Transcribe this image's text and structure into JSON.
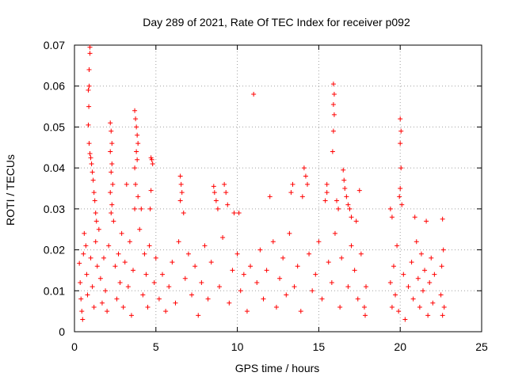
{
  "chart_data": {
    "type": "scatter",
    "title": "Day 289 of 2021, Rate Of TEC Index for receiver p092",
    "xlabel": "GPS time / hours",
    "ylabel": "ROTI / TECUs",
    "xlim": [
      0,
      25
    ],
    "ylim": [
      0,
      0.07
    ],
    "x_ticks": [
      0,
      5,
      10,
      15,
      20,
      25
    ],
    "y_ticks": [
      0,
      0.01,
      0.02,
      0.03,
      0.04,
      0.05,
      0.06,
      0.07
    ],
    "x_tick_labels": [
      "0",
      "5",
      "10",
      "15",
      "20",
      "25"
    ],
    "y_tick_labels": [
      "0",
      "0.01",
      "0.02",
      "0.03",
      "0.04",
      "0.05",
      "0.06",
      "0.07"
    ],
    "grid": true,
    "marker": "+",
    "color": "#ff0000",
    "series": [
      {
        "name": "ROTI",
        "points": [
          [
            0.95,
            0.0695
          ],
          [
            0.95,
            0.068
          ],
          [
            0.9,
            0.064
          ],
          [
            0.9,
            0.06
          ],
          [
            0.85,
            0.059
          ],
          [
            0.88,
            0.055
          ],
          [
            0.85,
            0.0505
          ],
          [
            0.9,
            0.046
          ],
          [
            0.95,
            0.0435
          ],
          [
            1.0,
            0.0425
          ],
          [
            1.05,
            0.041
          ],
          [
            1.1,
            0.039
          ],
          [
            1.15,
            0.037
          ],
          [
            1.2,
            0.034
          ],
          [
            1.25,
            0.032
          ],
          [
            1.3,
            0.029
          ],
          [
            1.35,
            0.027
          ],
          [
            2.2,
            0.051
          ],
          [
            2.25,
            0.049
          ],
          [
            2.3,
            0.046
          ],
          [
            2.2,
            0.044
          ],
          [
            2.3,
            0.041
          ],
          [
            2.25,
            0.039
          ],
          [
            2.35,
            0.036
          ],
          [
            2.2,
            0.034
          ],
          [
            2.3,
            0.031
          ],
          [
            2.25,
            0.029
          ],
          [
            2.4,
            0.027
          ],
          [
            3.7,
            0.054
          ],
          [
            3.75,
            0.052
          ],
          [
            3.8,
            0.05
          ],
          [
            3.85,
            0.048
          ],
          [
            3.9,
            0.046
          ],
          [
            3.8,
            0.044
          ],
          [
            3.85,
            0.042
          ],
          [
            3.7,
            0.04
          ],
          [
            3.75,
            0.036
          ],
          [
            3.9,
            0.033
          ],
          [
            3.7,
            0.03
          ],
          [
            3.2,
            0.036
          ],
          [
            4.1,
            0.03
          ],
          [
            4.7,
            0.0425
          ],
          [
            4.75,
            0.042
          ],
          [
            4.8,
            0.041
          ],
          [
            4.7,
            0.0345
          ],
          [
            4.65,
            0.03
          ],
          [
            6.5,
            0.038
          ],
          [
            6.55,
            0.036
          ],
          [
            6.6,
            0.034
          ],
          [
            6.5,
            0.032
          ],
          [
            6.7,
            0.029
          ],
          [
            8.55,
            0.0355
          ],
          [
            8.6,
            0.034
          ],
          [
            8.7,
            0.032
          ],
          [
            8.8,
            0.03
          ],
          [
            9.2,
            0.036
          ],
          [
            9.3,
            0.034
          ],
          [
            9.4,
            0.031
          ],
          [
            9.8,
            0.029
          ],
          [
            10.1,
            0.029
          ],
          [
            11.0,
            0.058
          ],
          [
            12.0,
            0.033
          ],
          [
            13.3,
            0.034
          ],
          [
            13.4,
            0.036
          ],
          [
            14.1,
            0.04
          ],
          [
            14.2,
            0.038
          ],
          [
            14.3,
            0.036
          ],
          [
            14.0,
            0.033
          ],
          [
            15.9,
            0.0605
          ],
          [
            15.95,
            0.058
          ],
          [
            15.9,
            0.0555
          ],
          [
            15.95,
            0.053
          ],
          [
            15.9,
            0.049
          ],
          [
            15.85,
            0.044
          ],
          [
            15.5,
            0.036
          ],
          [
            15.5,
            0.034
          ],
          [
            15.4,
            0.032
          ],
          [
            16.1,
            0.032
          ],
          [
            16.2,
            0.03
          ],
          [
            16.5,
            0.0395
          ],
          [
            16.55,
            0.037
          ],
          [
            16.6,
            0.035
          ],
          [
            16.7,
            0.033
          ],
          [
            16.8,
            0.031
          ],
          [
            16.9,
            0.03
          ],
          [
            17.0,
            0.028
          ],
          [
            17.5,
            0.0345
          ],
          [
            17.3,
            0.027
          ],
          [
            20.0,
            0.052
          ],
          [
            20.05,
            0.049
          ],
          [
            20.0,
            0.046
          ],
          [
            20.05,
            0.04
          ],
          [
            20.0,
            0.035
          ],
          [
            19.95,
            0.033
          ],
          [
            20.1,
            0.031
          ],
          [
            19.4,
            0.03
          ],
          [
            19.5,
            0.028
          ],
          [
            20.9,
            0.028
          ],
          [
            21.6,
            0.027
          ],
          [
            22.6,
            0.0275
          ],
          [
            0.3,
            0.0167
          ],
          [
            0.35,
            0.012
          ],
          [
            0.4,
            0.008
          ],
          [
            0.45,
            0.005
          ],
          [
            0.5,
            0.003
          ],
          [
            0.55,
            0.019
          ],
          [
            0.6,
            0.024
          ],
          [
            0.7,
            0.021
          ],
          [
            0.75,
            0.014
          ],
          [
            0.8,
            0.009
          ],
          [
            1.0,
            0.018
          ],
          [
            1.1,
            0.011
          ],
          [
            1.2,
            0.006
          ],
          [
            1.3,
            0.022
          ],
          [
            1.4,
            0.016
          ],
          [
            1.5,
            0.025
          ],
          [
            1.6,
            0.013
          ],
          [
            1.7,
            0.007
          ],
          [
            1.8,
            0.018
          ],
          [
            1.9,
            0.01
          ],
          [
            2.0,
            0.005
          ],
          [
            2.1,
            0.021
          ],
          [
            2.5,
            0.016
          ],
          [
            2.6,
            0.008
          ],
          [
            2.7,
            0.019
          ],
          [
            2.8,
            0.012
          ],
          [
            2.9,
            0.024
          ],
          [
            3.0,
            0.006
          ],
          [
            3.1,
            0.017
          ],
          [
            3.3,
            0.011
          ],
          [
            3.4,
            0.022
          ],
          [
            3.5,
            0.004
          ],
          [
            3.6,
            0.015
          ],
          [
            4.0,
            0.025
          ],
          [
            4.2,
            0.009
          ],
          [
            4.3,
            0.019
          ],
          [
            4.4,
            0.014
          ],
          [
            4.5,
            0.006
          ],
          [
            4.6,
            0.021
          ],
          [
            4.9,
            0.012
          ],
          [
            5.0,
            0.018
          ],
          [
            5.2,
            0.008
          ],
          [
            5.4,
            0.014
          ],
          [
            5.6,
            0.005
          ],
          [
            5.8,
            0.011
          ],
          [
            6.0,
            0.017
          ],
          [
            6.2,
            0.007
          ],
          [
            6.4,
            0.022
          ],
          [
            6.8,
            0.013
          ],
          [
            7.0,
            0.019
          ],
          [
            7.2,
            0.009
          ],
          [
            7.4,
            0.016
          ],
          [
            7.6,
            0.004
          ],
          [
            7.8,
            0.012
          ],
          [
            8.0,
            0.021
          ],
          [
            8.2,
            0.008
          ],
          [
            8.4,
            0.017
          ],
          [
            8.9,
            0.011
          ],
          [
            9.1,
            0.023
          ],
          [
            9.5,
            0.007
          ],
          [
            9.7,
            0.015
          ],
          [
            10.0,
            0.019
          ],
          [
            10.2,
            0.01
          ],
          [
            10.4,
            0.014
          ],
          [
            10.6,
            0.005
          ],
          [
            10.8,
            0.016
          ],
          [
            11.2,
            0.012
          ],
          [
            11.4,
            0.02
          ],
          [
            11.6,
            0.008
          ],
          [
            11.8,
            0.015
          ],
          [
            12.2,
            0.022
          ],
          [
            12.4,
            0.006
          ],
          [
            12.6,
            0.013
          ],
          [
            12.8,
            0.018
          ],
          [
            13.0,
            0.009
          ],
          [
            13.2,
            0.024
          ],
          [
            13.5,
            0.011
          ],
          [
            13.7,
            0.016
          ],
          [
            13.9,
            0.005
          ],
          [
            14.4,
            0.019
          ],
          [
            14.6,
            0.01
          ],
          [
            14.8,
            0.014
          ],
          [
            15.0,
            0.022
          ],
          [
            15.2,
            0.008
          ],
          [
            15.6,
            0.017
          ],
          [
            15.8,
            0.012
          ],
          [
            16.0,
            0.024
          ],
          [
            16.3,
            0.006
          ],
          [
            16.4,
            0.018
          ],
          [
            16.8,
            0.011
          ],
          [
            17.0,
            0.021
          ],
          [
            17.2,
            0.015
          ],
          [
            17.4,
            0.008
          ],
          [
            17.6,
            0.019
          ],
          [
            17.8,
            0.006
          ],
          [
            17.9,
            0.011
          ],
          [
            17.85,
            0.004
          ],
          [
            19.4,
            0.012
          ],
          [
            19.5,
            0.006
          ],
          [
            19.6,
            0.016
          ],
          [
            19.7,
            0.009
          ],
          [
            19.8,
            0.021
          ],
          [
            19.9,
            0.005
          ],
          [
            20.2,
            0.014
          ],
          [
            20.3,
            0.003
          ],
          [
            20.5,
            0.011
          ],
          [
            20.7,
            0.017
          ],
          [
            20.8,
            0.008
          ],
          [
            21.0,
            0.022
          ],
          [
            21.1,
            0.013
          ],
          [
            21.2,
            0.006
          ],
          [
            21.3,
            0.019
          ],
          [
            21.4,
            0.01
          ],
          [
            21.5,
            0.015
          ],
          [
            21.7,
            0.004
          ],
          [
            21.8,
            0.012
          ],
          [
            21.9,
            0.018
          ],
          [
            22.0,
            0.007
          ],
          [
            22.1,
            0.014
          ],
          [
            22.5,
            0.009
          ],
          [
            22.55,
            0.016
          ],
          [
            22.6,
            0.004
          ],
          [
            22.65,
            0.02
          ],
          [
            22.7,
            0.006
          ]
        ]
      }
    ]
  }
}
